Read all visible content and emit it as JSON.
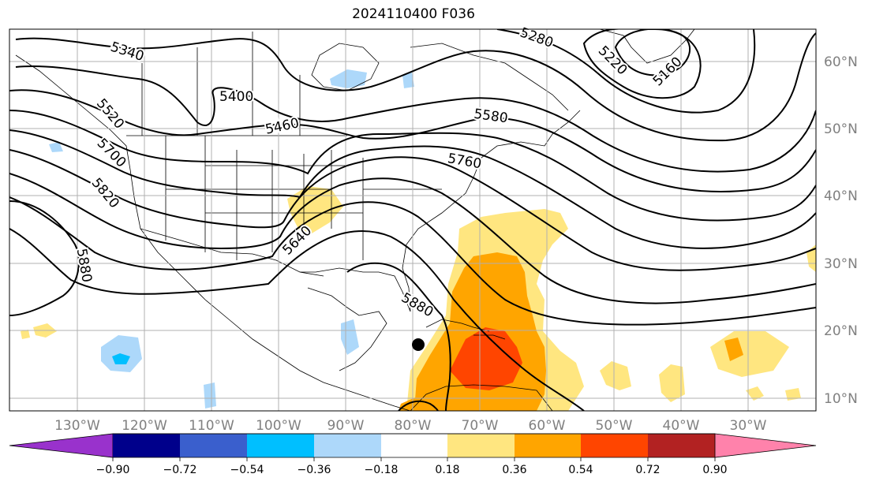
{
  "title": "2024110400 F036",
  "lon_labels": [
    "130°W",
    "120°W",
    "110°W",
    "100°W",
    "90°W",
    "80°W",
    "70°W",
    "60°W",
    "50°W",
    "40°W",
    "30°W"
  ],
  "lat_labels": [
    "60°N",
    "50°N",
    "40°N",
    "30°N",
    "20°N",
    "10°N"
  ],
  "contour_labels": [
    "5340",
    "5280",
    "5220",
    "5160",
    "5400",
    "5460",
    "5580",
    "5520",
    "5760",
    "5700",
    "5820",
    "5640",
    "5880",
    "5880"
  ],
  "colorbar": {
    "ticks": [
      "−0.90",
      "−0.72",
      "−0.54",
      "−0.36",
      "−0.18",
      "0.18",
      "0.36",
      "0.54",
      "0.72",
      "0.90"
    ],
    "colors": [
      "#9932cc",
      "#00008b",
      "#3a5fcd",
      "#00bfff",
      "#add8fa",
      "#ffffff",
      "#ffe680",
      "#ffa500",
      "#ff4500",
      "#b22222",
      "#ff82ab"
    ]
  },
  "shading_colors": {
    "neg_light": "#add8fa",
    "neg_mid": "#00bfff",
    "pos_light": "#ffe680",
    "pos_mid": "#ffa500",
    "pos_strong": "#ff4500"
  },
  "marker": "storm-center-marker"
}
